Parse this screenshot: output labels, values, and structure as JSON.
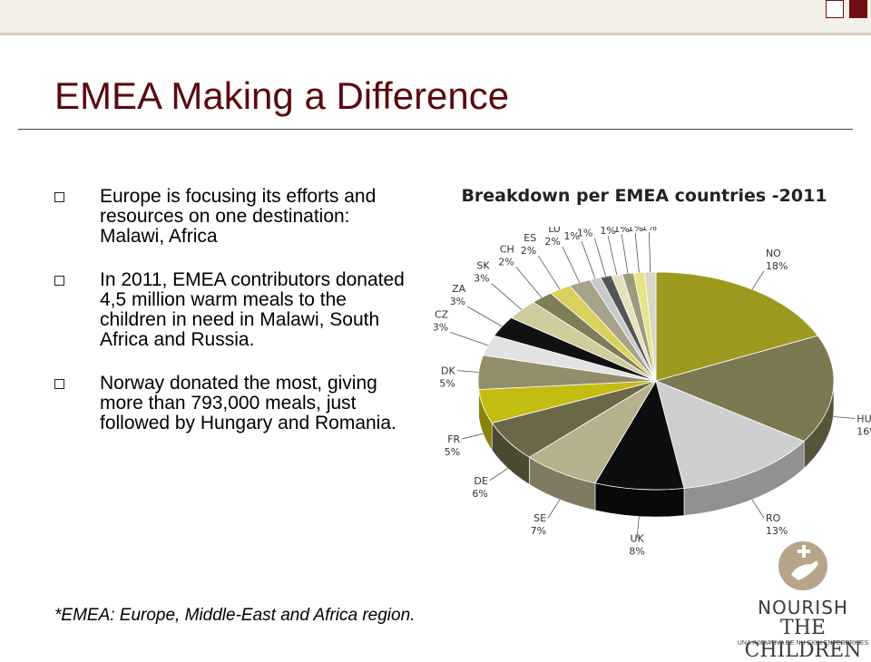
{
  "slide": {
    "title": "EMEA Making a Difference",
    "bullets": [
      "Europe is focusing its efforts and resources on one destination: Malawi, Africa",
      "In 2011, EMEA contributors donated 4,5 million warm meals to the children in need in Malawi, South Africa and Russia.",
      "Norway donated the most, giving more than 793,000 meals, just followed by Hungary and Romania."
    ],
    "footnote": "*EMEA: Europe, Middle-East and Africa region."
  },
  "logo": {
    "line1": "NOURISH",
    "line2": "THE CHILDREN",
    "tagline": "UNA INICIATIVA DE NU SKIN ENTERPRISES"
  },
  "colors": {
    "title": "#5a0a0f",
    "accent": "#6f0f14"
  },
  "chart_data": {
    "type": "pie",
    "title": "Breakdown per EMEA countries -2011",
    "slices": [
      {
        "label": "NO",
        "pct": "18%",
        "value": 18,
        "color": "#9c9a1e"
      },
      {
        "label": "HU",
        "pct": "16%",
        "value": 16,
        "color": "#7b7852"
      },
      {
        "label": "RO",
        "pct": "13%",
        "value": 13,
        "color": "#cfcfcf"
      },
      {
        "label": "UK",
        "pct": "8%",
        "value": 8,
        "color": "#0d0d0d"
      },
      {
        "label": "SE",
        "pct": "7%",
        "value": 7,
        "color": "#b6b08c"
      },
      {
        "label": "DE",
        "pct": "6%",
        "value": 6,
        "color": "#6b6848"
      },
      {
        "label": "FR",
        "pct": "5%",
        "value": 5,
        "color": "#c3bd12"
      },
      {
        "label": "DK",
        "pct": "5%",
        "value": 5,
        "color": "#938d6a"
      },
      {
        "label": "CZ",
        "pct": "3%",
        "value": 3,
        "color": "#e2e2e2"
      },
      {
        "label": "ZA",
        "pct": "3%",
        "value": 3,
        "color": "#111111"
      },
      {
        "label": "SK",
        "pct": "3%",
        "value": 3,
        "color": "#d0cc9e"
      },
      {
        "label": "CH",
        "pct": "2%",
        "value": 2,
        "color": "#7f7c58"
      },
      {
        "label": "ES",
        "pct": "2%",
        "value": 2,
        "color": "#d8d15c"
      },
      {
        "label": "LU",
        "pct": "2%",
        "value": 2,
        "color": "#a6a38a"
      },
      {
        "label": "BE",
        "pct": "1%",
        "value": 1,
        "color": "#c9c9c9"
      },
      {
        "label": "IS",
        "pct": "1%",
        "value": 1,
        "color": "#555555"
      },
      {
        "label": "AT",
        "pct": "1%",
        "value": 1,
        "color": "#e5e1bf"
      },
      {
        "label": "IL",
        "pct": "1%",
        "value": 1,
        "color": "#9e9b7a"
      },
      {
        "label": "RU",
        "pct": "1%",
        "value": 1,
        "color": "#e8e48a"
      },
      {
        "label": "Others",
        "pct": "1%",
        "value": 1,
        "color": "#d9d6c4"
      }
    ]
  }
}
